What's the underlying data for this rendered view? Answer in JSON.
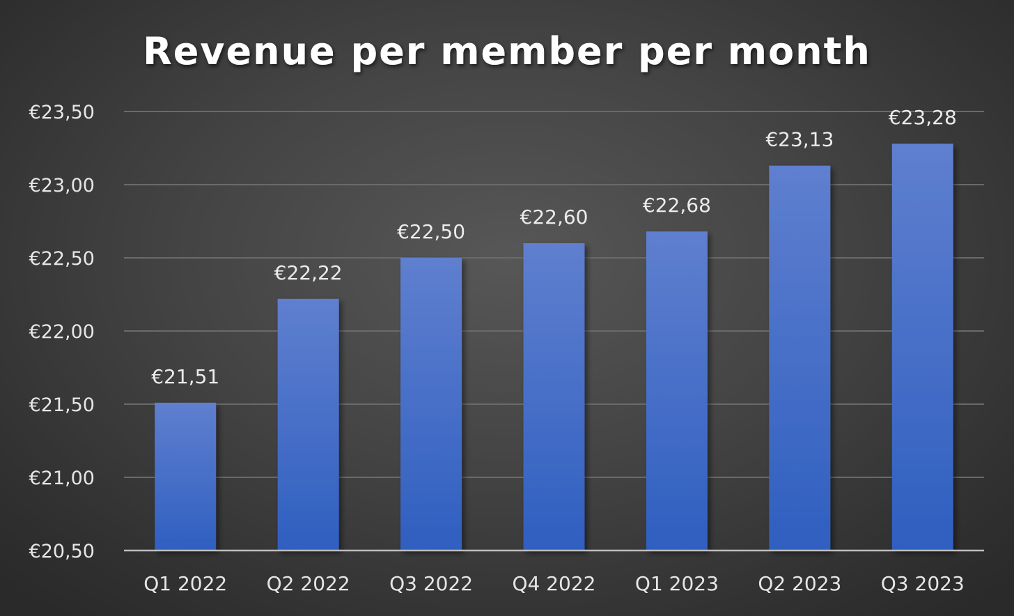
{
  "chart_data": {
    "type": "bar",
    "title": "Revenue per member per month",
    "xlabel": "",
    "ylabel": "",
    "categories": [
      "Q1 2022",
      "Q2 2022",
      "Q3 2022",
      "Q4 2022",
      "Q1 2023",
      "Q2 2023",
      "Q3 2023"
    ],
    "values": [
      21.51,
      22.22,
      22.5,
      22.6,
      22.68,
      23.13,
      23.28
    ],
    "data_labels": [
      "€21,51",
      "€22,22",
      "€22,50",
      "€22,60",
      "€22,68",
      "€23,13",
      "€23,28"
    ],
    "ylim": [
      20.5,
      23.5
    ],
    "yticks": [
      20.5,
      21.0,
      21.5,
      22.0,
      22.5,
      23.0,
      23.5
    ],
    "ytick_labels": [
      "€20,50",
      "€21,00",
      "€21,50",
      "€22,00",
      "€22,50",
      "€23,00",
      "€23,50"
    ],
    "grid": true,
    "legend": "none",
    "colors": {
      "bar_top": "#5f7fcf",
      "bar_bottom": "#2f5fc0",
      "background": "#3c3c3c",
      "text": "#e6e6e6"
    }
  }
}
